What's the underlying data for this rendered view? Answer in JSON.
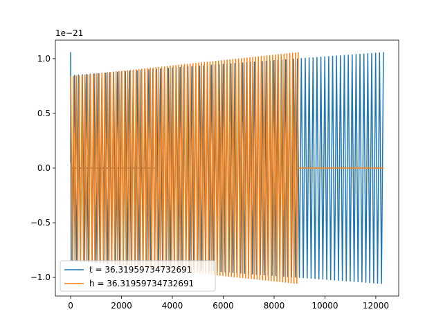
{
  "chart_data": {
    "type": "line",
    "title": "",
    "xlabel": "",
    "ylabel": "",
    "offset_text": "1e−21",
    "xlim": [
      -600,
      12900
    ],
    "ylim": [
      -1.17,
      1.17
    ],
    "x_ticks": [
      0,
      2000,
      4000,
      6000,
      8000,
      10000,
      12000
    ],
    "x_tick_labels": [
      "0",
      "2000",
      "4000",
      "6000",
      "8000",
      "10000",
      "12000"
    ],
    "y_ticks": [
      -1.0,
      -0.5,
      0.0,
      0.5,
      1.0
    ],
    "y_tick_labels": [
      "−1.0",
      "−0.5",
      "0.0",
      "0.5",
      "1.0"
    ],
    "grid": false,
    "legend_position": "lower-left",
    "series": [
      {
        "name": "t = 36.31959734732691",
        "color": "#1f77b4",
        "waveform": "sinusoid",
        "active_x_range": [
          0,
          12300
        ],
        "amplitude_start": 0.85,
        "amplitude_end": 1.06,
        "peak_count": 80,
        "initial_spike": {
          "x": 0,
          "y": 1.06
        },
        "flat_zero_segment": [
          0,
          3400
        ]
      },
      {
        "name": "h = 36.31959734732691",
        "color": "#ff7f0e",
        "waveform": "sinusoid",
        "active_x_range": [
          0,
          8950
        ],
        "amplitude_start": 0.84,
        "amplitude_end": 1.06,
        "peak_count": 80,
        "flat_zero_segment": [
          8950,
          12300
        ]
      }
    ]
  }
}
